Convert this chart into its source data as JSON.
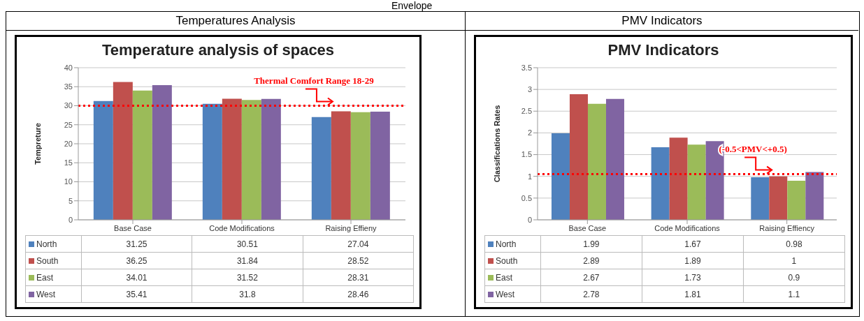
{
  "chart_data": [
    {
      "type": "bar",
      "subtitle": "Temperatures Analysis",
      "title": "Temperature analysis of spaces",
      "ylabel": "Tempreture",
      "categories": [
        "Base Case",
        "Code Modifications",
        "Raising Effieny"
      ],
      "series": [
        {
          "name": "North",
          "color": "#4f81bd",
          "values": [
            31.25,
            30.51,
            27.04
          ]
        },
        {
          "name": "South",
          "color": "#c0504d",
          "values": [
            36.25,
            31.84,
            28.52
          ]
        },
        {
          "name": "East",
          "color": "#9bbb59",
          "values": [
            34.01,
            31.52,
            28.31
          ]
        },
        {
          "name": "West",
          "color": "#8064a2",
          "values": [
            35.41,
            31.8,
            28.46
          ]
        }
      ],
      "ylim": [
        0,
        40
      ],
      "yticks": [
        0,
        5,
        10,
        15,
        20,
        25,
        30,
        35,
        40
      ],
      "grid": "y",
      "legend": "bottom",
      "data_labels": true,
      "ref_lines": [
        {
          "axis": "y",
          "value": 30,
          "label": "Thermal Comfort Range 18-29",
          "color": "#ff0000",
          "line_style": "dotted"
        }
      ],
      "annotations": [
        "Envelope"
      ]
    },
    {
      "type": "bar",
      "subtitle": "PMV Indicators",
      "title": "PMV Indicators",
      "ylabel": "Classifications Rates",
      "categories": [
        "Base Case",
        "Code Modifications",
        "Raising Effiency"
      ],
      "series": [
        {
          "name": "North",
          "color": "#4f81bd",
          "values": [
            1.99,
            1.67,
            0.98
          ]
        },
        {
          "name": "South",
          "color": "#c0504d",
          "values": [
            2.89,
            1.89,
            1
          ]
        },
        {
          "name": "East",
          "color": "#9bbb59",
          "values": [
            2.67,
            1.73,
            0.9
          ]
        },
        {
          "name": "West",
          "color": "#8064a2",
          "values": [
            2.78,
            1.81,
            1.1
          ]
        }
      ],
      "ylim": [
        0,
        3.5
      ],
      "yticks": [
        0,
        0.5,
        1,
        1.5,
        2,
        2.5,
        3,
        3.5
      ],
      "grid": "y",
      "legend": "bottom",
      "data_labels": true,
      "ref_lines": [
        {
          "axis": "y",
          "value": 1.05,
          "label": "(-0.5<PMV<+0.5)",
          "color": "#ff0000",
          "line_style": "dotted"
        }
      ]
    }
  ]
}
